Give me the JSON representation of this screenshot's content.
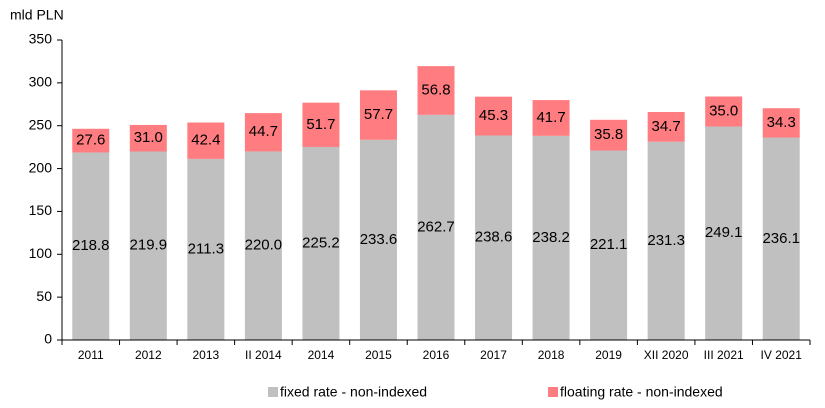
{
  "chart_data": {
    "type": "stacked_bar",
    "y_label": "mld PLN",
    "categories": [
      "2011",
      "2012",
      "2013",
      "II 2014",
      "2014",
      "2015",
      "2016",
      "2017",
      "2018",
      "2019",
      "XII 2020",
      "III 2021",
      "IV 2021"
    ],
    "series": [
      {
        "name": "fixed rate - non-indexed",
        "color": "#c0c0c0",
        "values": [
          218.8,
          219.9,
          211.3,
          220.0,
          225.2,
          233.6,
          262.7,
          238.6,
          238.2,
          221.1,
          231.3,
          249.1,
          236.1
        ],
        "value_labels": [
          "218.8",
          "219.9",
          "211.3",
          "220.0",
          "225.2",
          "233.6",
          "262.7",
          "238.6",
          "238.2",
          "221.1",
          "231.3",
          "249.1",
          "236.1"
        ]
      },
      {
        "name": "floating rate - non-indexed",
        "color": "#ff7c80",
        "values": [
          27.6,
          31.0,
          42.4,
          44.7,
          51.7,
          57.7,
          56.8,
          45.3,
          41.7,
          35.8,
          34.7,
          35.0,
          34.3
        ],
        "value_labels": [
          "27.6",
          "31.0",
          "42.4",
          "44.7",
          "51.7",
          "57.7",
          "56.8",
          "45.3",
          "41.7",
          "35.8",
          "34.7",
          "35.0",
          "34.3"
        ]
      }
    ],
    "ylim": [
      0,
      350
    ],
    "yticks": [
      0,
      50,
      100,
      150,
      200,
      250,
      300,
      350
    ],
    "legend": "bottom"
  }
}
